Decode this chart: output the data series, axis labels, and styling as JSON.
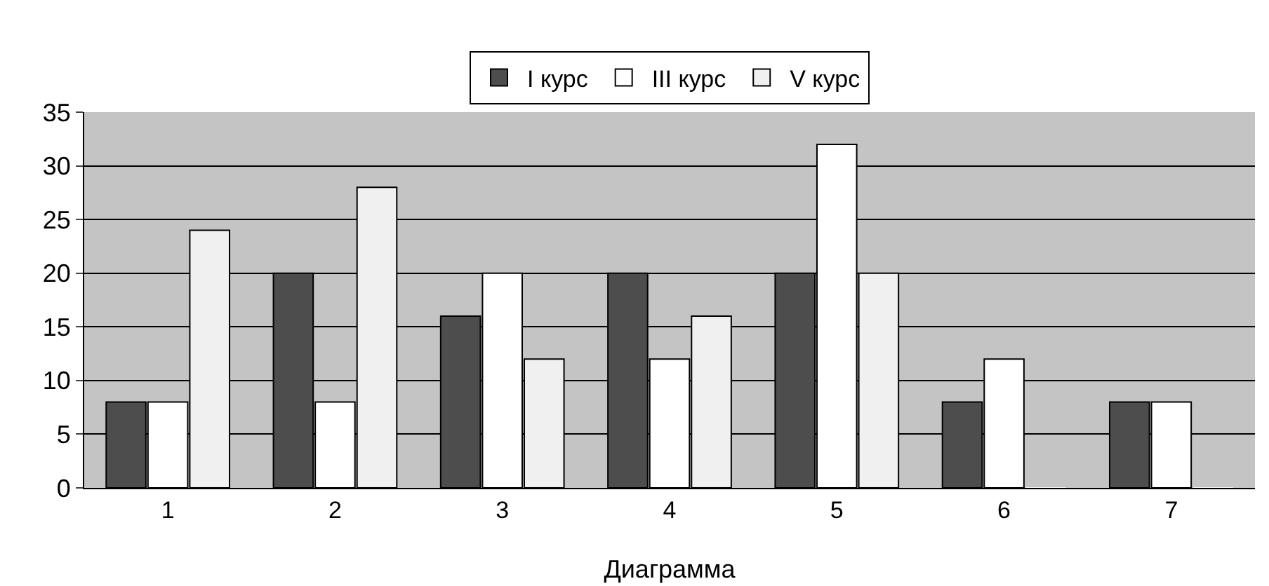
{
  "chart_data": {
    "type": "bar",
    "xlabel": "Диаграмма",
    "categories": [
      "1",
      "2",
      "3",
      "4",
      "5",
      "6",
      "7"
    ],
    "series": [
      {
        "name": "I курс",
        "color": "#4d4d4d",
        "values": [
          8,
          20,
          16,
          20,
          20,
          8,
          8
        ]
      },
      {
        "name": "III курс",
        "color": "#ffffff",
        "values": [
          8,
          8,
          20,
          12,
          32,
          12,
          8
        ]
      },
      {
        "name": "V курс",
        "color": "#f0f0f0",
        "values": [
          24,
          28,
          12,
          16,
          20,
          0,
          0
        ]
      }
    ],
    "ylim": [
      0,
      35
    ],
    "yticks": [
      0,
      5,
      10,
      15,
      20,
      25,
      30,
      35
    ],
    "grid": "y",
    "legend": "top"
  }
}
